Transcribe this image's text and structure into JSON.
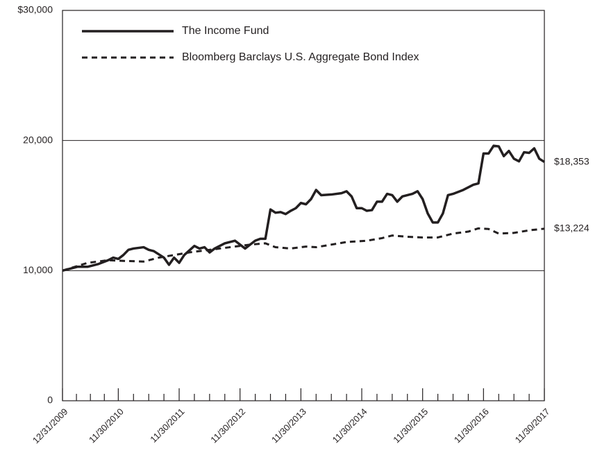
{
  "chart_data": {
    "type": "line",
    "xlim": [
      0,
      95
    ],
    "xticks": [
      {
        "value": 0,
        "label": "12/31/2009"
      },
      {
        "value": 11,
        "label": "11/30/2010"
      },
      {
        "value": 23,
        "label": "11/30/2011"
      },
      {
        "value": 35,
        "label": "11/30/2012"
      },
      {
        "value": 47,
        "label": "11/30/2013"
      },
      {
        "value": 59,
        "label": "11/30/2014"
      },
      {
        "value": 71,
        "label": "11/30/2015"
      },
      {
        "value": 83,
        "label": "11/30/2016"
      },
      {
        "value": 95,
        "label": "11/30/2017"
      }
    ],
    "ylim": [
      0,
      30000
    ],
    "yticks": [
      0,
      {
        "value": 10000,
        "label": "10,000"
      },
      {
        "value": 20000,
        "label": "20,000"
      },
      {
        "value": 30000,
        "label": "$30,000"
      }
    ],
    "grid": true,
    "legend": "top-left",
    "series": [
      {
        "name": "The Income Fund",
        "color": "#231f20",
        "style": "solid",
        "end_label": "$18,353",
        "x": [
          0,
          1,
          3,
          5,
          7,
          9,
          10,
          11,
          12,
          13,
          14,
          16,
          17,
          18,
          20,
          21,
          22,
          23,
          24,
          26,
          27,
          28,
          29,
          30,
          32,
          33,
          34,
          35,
          36,
          37,
          38,
          39,
          40,
          41,
          42,
          43,
          44,
          45,
          46,
          47,
          48,
          49,
          50,
          51,
          53,
          55,
          56,
          57,
          58,
          59,
          60,
          61,
          62,
          63,
          64,
          65,
          66,
          67,
          68,
          69,
          70,
          71,
          72,
          73,
          74,
          75,
          76,
          77,
          79,
          80,
          81,
          82,
          83,
          84,
          85,
          86,
          87,
          88,
          89,
          90,
          91,
          92,
          93,
          94,
          95
        ],
        "values": [
          10000,
          10100,
          10300,
          10300,
          10500,
          10800,
          11000,
          10900,
          11200,
          11600,
          11700,
          11800,
          11600,
          11500,
          11000,
          10450,
          11000,
          10600,
          11200,
          11900,
          11700,
          11800,
          11400,
          11700,
          12100,
          12200,
          12300,
          12000,
          11700,
          12000,
          12300,
          12450,
          12450,
          14700,
          14450,
          14500,
          14350,
          14600,
          14800,
          15200,
          15100,
          15500,
          16200,
          15800,
          15850,
          15950,
          16100,
          15700,
          14800,
          14800,
          14600,
          14650,
          15300,
          15300,
          15900,
          15800,
          15300,
          15700,
          15800,
          15900,
          16100,
          15500,
          14400,
          13700,
          13700,
          14400,
          15800,
          15900,
          16200,
          16400,
          16600,
          16700,
          19000,
          19000,
          19600,
          19550,
          18800,
          19200,
          18600,
          18400,
          19100,
          19050,
          19400,
          18600,
          18353
        ]
      },
      {
        "name": "Bloomberg Barclays U.S. Aggregate Bond Index",
        "color": "#231f20",
        "style": "dashed",
        "end_label": "$13,224",
        "x": [
          0,
          5,
          9,
          12,
          16,
          19,
          22,
          25,
          29,
          33,
          37,
          40,
          42,
          45,
          48,
          50,
          53,
          56,
          60,
          63,
          65,
          68,
          71,
          74,
          77,
          80,
          82,
          84,
          86,
          89,
          92,
          95
        ],
        "values": [
          10000,
          10600,
          10800,
          10750,
          10700,
          11000,
          11200,
          11400,
          11600,
          11800,
          12000,
          12100,
          11800,
          11700,
          11850,
          11800,
          12000,
          12200,
          12300,
          12500,
          12700,
          12600,
          12550,
          12550,
          12850,
          13000,
          13250,
          13200,
          12850,
          12900,
          13100,
          13224
        ]
      }
    ]
  }
}
